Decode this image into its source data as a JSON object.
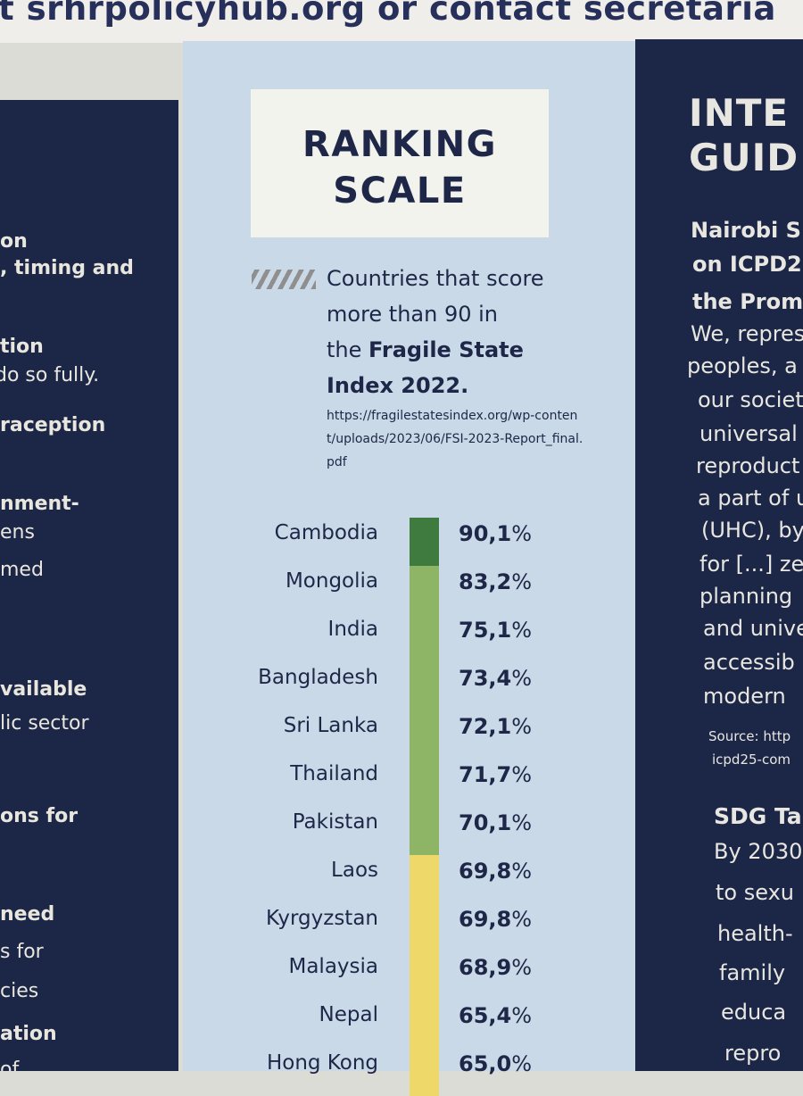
{
  "top_banner": "t srhrpolicyhub.org or contact secretaria",
  "left_column_lines": [
    {
      "text": "on",
      "bold": true
    },
    {
      "text": ", timing and",
      "bold": true
    },
    {
      "text": "tion",
      "bold": true
    },
    {
      "text": "do so fully.",
      "bold": false
    },
    {
      "text": "raception",
      "bold": true
    },
    {
      "text": "nment-",
      "bold": true
    },
    {
      "text": "ens",
      "bold": false
    },
    {
      "text": "med",
      "bold": false
    },
    {
      "text": "vailable",
      "bold": true
    },
    {
      "text": "lic sector",
      "bold": false
    },
    {
      "text": "ons for",
      "bold": true
    },
    {
      "text": "need",
      "bold": true
    },
    {
      "text": "s for",
      "bold": false
    },
    {
      "text": "cies",
      "bold": false
    },
    {
      "text": "ation",
      "bold": true
    },
    {
      "text": "of",
      "bold": false
    }
  ],
  "ranking": {
    "title_line1": "RANKING",
    "title_line2": "SCALE",
    "legend_text_1": "Countries that score",
    "legend_text_2": "more than 90 in",
    "legend_text_3": "the",
    "legend_bold_3": "Fragile State",
    "legend_bold_4": "Index 2022.",
    "source_url": "https://fragilestatesindex.org/wp-content/uploads/2023/06/FSI-2023-Report_final.pdf",
    "colors": {
      "dark_green": "#3f7a3e",
      "light_green": "#8db565",
      "yellow": "#eed86a"
    },
    "rows": [
      {
        "country": "Cambodia",
        "value": "90,1",
        "unit": "%",
        "band": "dark_green"
      },
      {
        "country": "Mongolia",
        "value": "83,2",
        "unit": "%",
        "band": "light_green"
      },
      {
        "country": "India",
        "value": "75,1",
        "unit": "%",
        "band": "light_green"
      },
      {
        "country": "Bangladesh",
        "value": "73,4",
        "unit": "%",
        "band": "light_green"
      },
      {
        "country": "Sri Lanka",
        "value": "72,1",
        "unit": "%",
        "band": "light_green"
      },
      {
        "country": "Thailand",
        "value": "71,7",
        "unit": "%",
        "band": "light_green"
      },
      {
        "country": "Pakistan",
        "value": "70,1",
        "unit": "%",
        "band": "light_green"
      },
      {
        "country": "Laos",
        "value": "69,8",
        "unit": "%",
        "band": "yellow"
      },
      {
        "country": "Kyrgyzstan",
        "value": "69,8",
        "unit": "%",
        "band": "yellow"
      },
      {
        "country": "Malaysia",
        "value": "68,9",
        "unit": "%",
        "band": "yellow"
      },
      {
        "country": "Nepal",
        "value": "65,4",
        "unit": "%",
        "band": "yellow"
      },
      {
        "country": "Hong Kong",
        "value": "65,0",
        "unit": "%",
        "band": "yellow"
      }
    ]
  },
  "right_column": {
    "heading_1": "INTE",
    "heading_2": "GUID",
    "subhead_1": "Nairobi S",
    "subhead_2": "on ICPD2",
    "subhead_3": "the Prom",
    "body_lines": [
      "We, repres",
      "peoples, a",
      "our societ",
      "universal a",
      "reproduct",
      "a part of u",
      "(UHC), by",
      "for [...] zer",
      "planning",
      "and unive",
      "accessib",
      "modern"
    ],
    "source_1": "Source: http",
    "source_2": "icpd25-com",
    "sdg_heading": "SDG Ta",
    "sdg_lines": [
      "By 2030",
      "to sexu",
      "health-",
      "family",
      "educa",
      "repro"
    ]
  }
}
